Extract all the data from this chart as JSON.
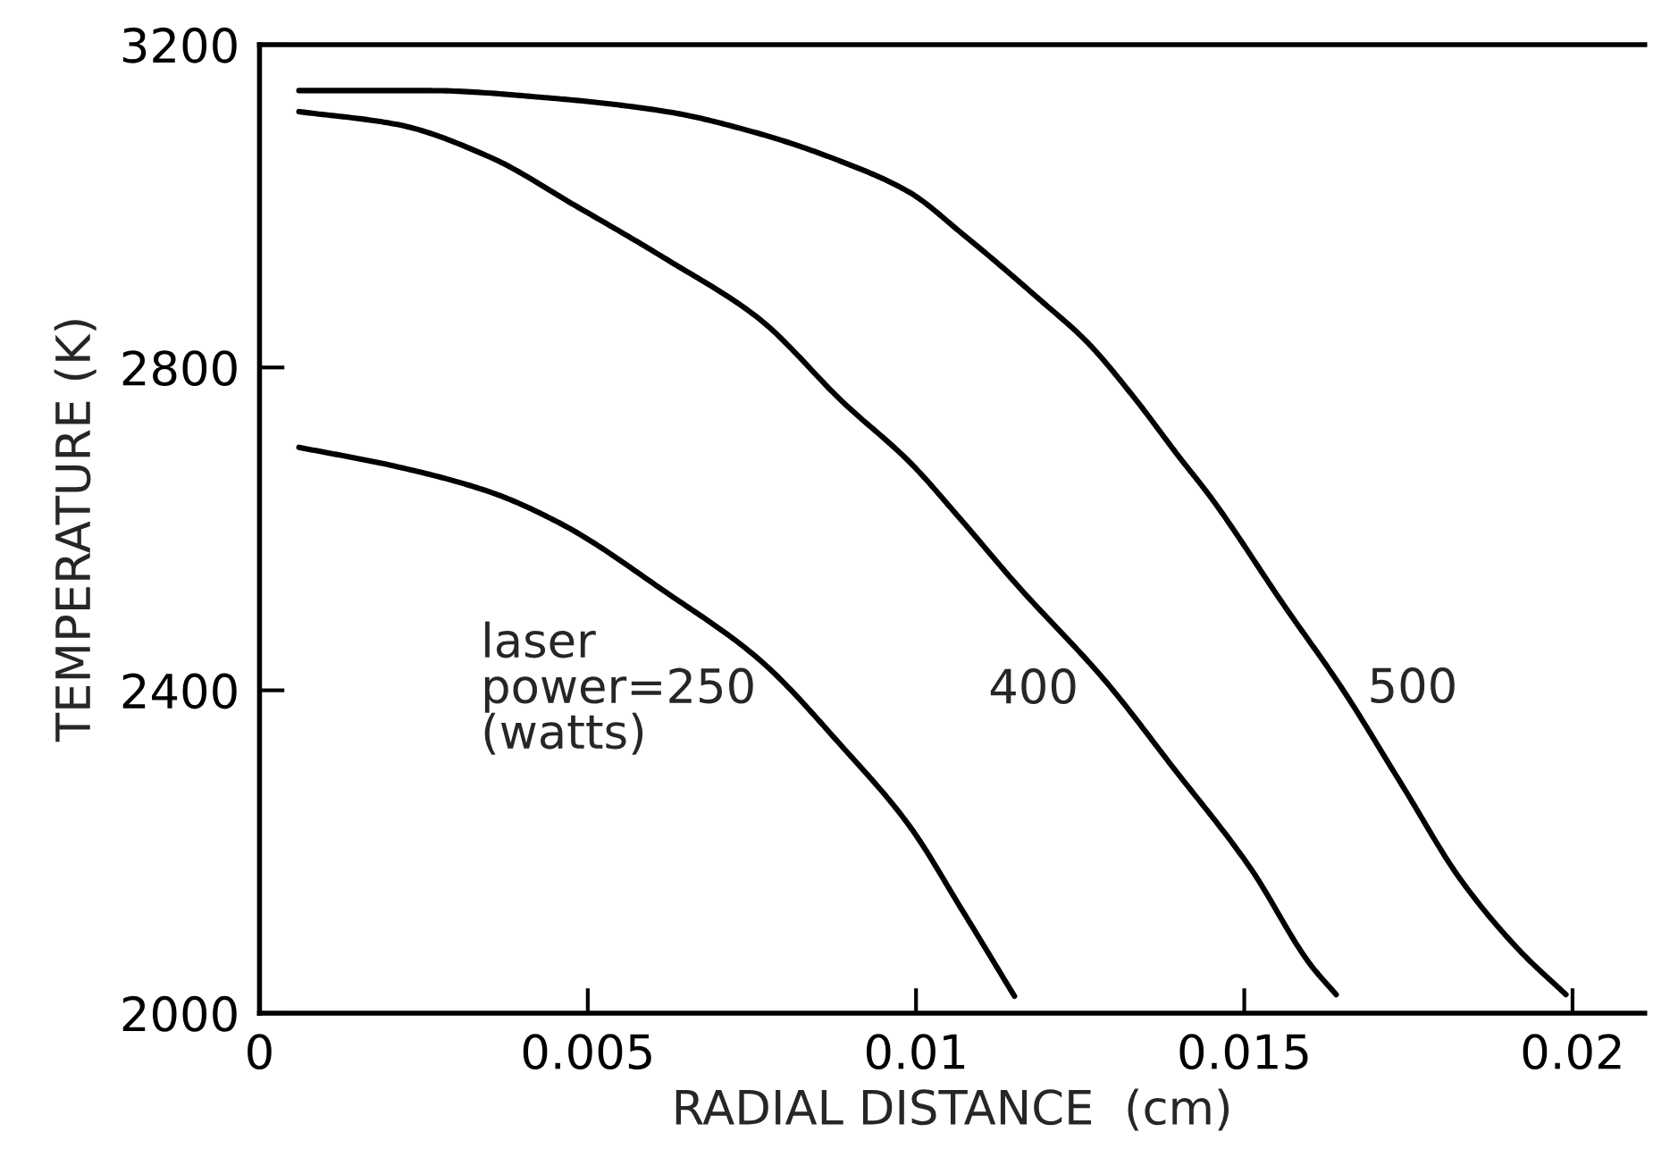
{
  "chart_data": {
    "type": "line",
    "xlabel": "RADIAL DISTANCE  (cm)",
    "ylabel": "TEMPERATURE (K)",
    "xlim": [
      0,
      0.0211
    ],
    "ylim": [
      2000,
      3200
    ],
    "xticks": [
      0,
      0.005,
      0.01,
      0.015,
      0.02
    ],
    "yticks": [
      2000,
      2400,
      2800,
      3200
    ],
    "grid": false,
    "legend": false,
    "marker": "none",
    "line_style": "solid",
    "series": [
      {
        "name": "laser\npower=250\n(watts)",
        "color": "#000000",
        "x": [
          0.0006,
          0.0021,
          0.0035,
          0.0046,
          0.0062,
          0.0076,
          0.0089,
          0.0099,
          0.0107,
          0.0115
        ],
        "values": [
          2701,
          2677,
          2646,
          2606,
          2521,
          2439,
          2328,
          2232,
          2128,
          2021
        ]
      },
      {
        "name": "400",
        "color": "#000000",
        "x": [
          0.0006,
          0.0021,
          0.0035,
          0.0048,
          0.0062,
          0.0076,
          0.0089,
          0.0099,
          0.0107,
          0.0115,
          0.0129,
          0.0139,
          0.0151,
          0.016,
          0.0164
        ],
        "values": [
          3117,
          3101,
          3061,
          3001,
          2934,
          2861,
          2756,
          2683,
          2610,
          2534,
          2410,
          2306,
          2179,
          2061,
          2023
        ]
      },
      {
        "name": "500",
        "color": "#000000",
        "x": [
          0.0006,
          0.0026,
          0.0044,
          0.0062,
          0.0076,
          0.0089,
          0.0099,
          0.0107,
          0.0119,
          0.0126,
          0.0133,
          0.014,
          0.0145,
          0.0156,
          0.0165,
          0.0174,
          0.0183,
          0.0192,
          0.0199
        ],
        "values": [
          3143,
          3143,
          3134,
          3117,
          3090,
          3054,
          3017,
          2966,
          2883,
          2832,
          2765,
          2690,
          2638,
          2506,
          2401,
          2283,
          2165,
          2077,
          2023
        ]
      }
    ]
  }
}
